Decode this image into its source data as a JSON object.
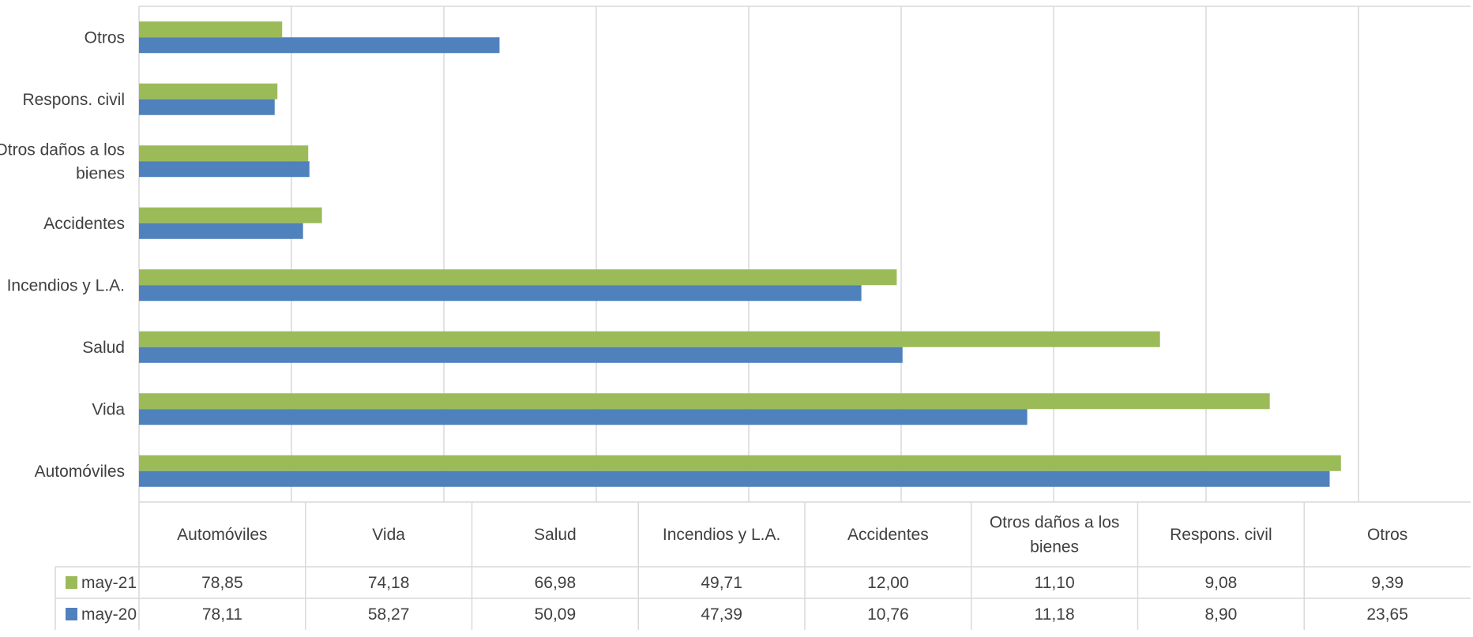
{
  "chart_data": {
    "type": "bar",
    "orientation": "horizontal",
    "categories": [
      "Automóviles",
      "Vida",
      "Salud",
      "Incendios y L.A.",
      "Accidentes",
      "Otros daños a los bienes",
      "Respons. civil",
      "Otros"
    ],
    "series": [
      {
        "name": "may-21",
        "color": "#9BBB59",
        "values": [
          78.85,
          74.18,
          66.98,
          49.71,
          12.0,
          11.1,
          9.08,
          9.39
        ]
      },
      {
        "name": "may-20",
        "color": "#4F81BD",
        "values": [
          78.11,
          58.27,
          50.09,
          47.39,
          10.76,
          11.18,
          8.9,
          23.65
        ]
      }
    ],
    "table": {
      "rows": [
        {
          "series": "may-21",
          "cells": [
            "78,85",
            "74,18",
            "66,98",
            "49,71",
            "12,00",
            "11,10",
            "9,08",
            "9,39"
          ]
        },
        {
          "series": "may-20",
          "cells": [
            "78,11",
            "58,27",
            "50,09",
            "47,39",
            "10,76",
            "11,18",
            "8,90",
            "23,65"
          ]
        }
      ]
    },
    "xlim": [
      0,
      90
    ],
    "grid": true,
    "legend": "data-table"
  }
}
